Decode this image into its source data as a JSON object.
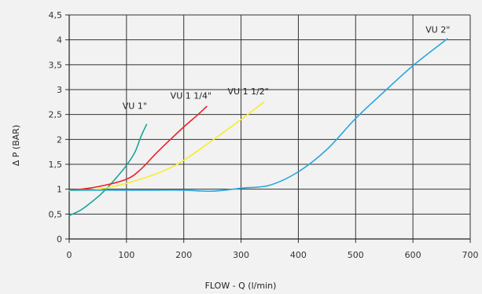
{
  "chart_data": {
    "type": "line",
    "xlabel": "FLOW - Q (l/min)",
    "ylabel": "Δ P (BAR)",
    "xlim": [
      0,
      700
    ],
    "ylim": [
      0,
      4.5
    ],
    "x_ticks": [
      0,
      100,
      200,
      300,
      400,
      500,
      600,
      700
    ],
    "x_tick_labels": [
      "0",
      "100",
      "200",
      "300",
      "400",
      "500",
      "600",
      "700"
    ],
    "y_ticks": [
      0,
      0.5,
      1,
      1.5,
      2,
      2.5,
      3,
      3.5,
      4,
      4.5
    ],
    "y_tick_labels": [
      "0",
      "0,5",
      "1",
      "1,5",
      "2",
      "2,5",
      "3",
      "3,5",
      "4",
      "4,5"
    ],
    "grid": true,
    "series": [
      {
        "name": "VU 1\"",
        "color": "#1aa39a",
        "x": [
          0,
          20,
          40,
          60,
          80,
          100,
          115,
          125,
          135
        ],
        "y": [
          0.47,
          0.58,
          0.75,
          0.95,
          1.2,
          1.48,
          1.75,
          2.05,
          2.3
        ]
      },
      {
        "name": "VU 1 1/4\"",
        "color": "#e8232a",
        "x": [
          0,
          50,
          100,
          125,
          150,
          175,
          200,
          225,
          240
        ],
        "y": [
          0.97,
          1.05,
          1.2,
          1.4,
          1.7,
          1.98,
          2.25,
          2.5,
          2.66
        ]
      },
      {
        "name": "VU 1 1/2\"",
        "color": "#f7ec2a",
        "x": [
          0,
          50,
          100,
          150,
          180,
          200,
          250,
          300,
          340
        ],
        "y": [
          0.97,
          1.0,
          1.12,
          1.3,
          1.45,
          1.58,
          1.98,
          2.4,
          2.75
        ]
      },
      {
        "name": "VU 2\"",
        "color": "#2aa7db",
        "x": [
          0,
          50,
          100,
          150,
          200,
          250,
          300,
          350,
          400,
          450,
          500,
          550,
          600,
          660
        ],
        "y": [
          0.98,
          0.98,
          0.98,
          0.98,
          0.98,
          0.96,
          1.02,
          1.08,
          1.35,
          1.8,
          2.42,
          2.96,
          3.48,
          4.02
        ]
      }
    ]
  }
}
